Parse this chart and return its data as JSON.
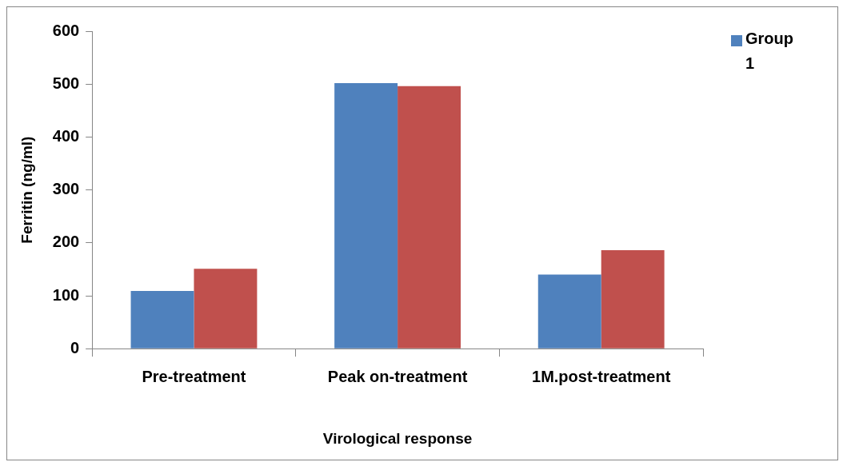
{
  "chart_data": {
    "type": "bar",
    "xlabel": "Virological response",
    "ylabel": "Ferritin (ng/ml)",
    "categories": [
      "Pre-treatment",
      "Peak on-treatment",
      "1M.post-treatment"
    ],
    "series": [
      {
        "name": "Group 1",
        "color": "#4f81bd",
        "values": [
          109,
          502,
          140
        ]
      },
      {
        "color": "#c0504d",
        "values": [
          151,
          496,
          186
        ]
      }
    ],
    "ylim": [
      0,
      600
    ],
    "yticks": [
      0,
      100,
      200,
      300,
      400,
      500,
      600
    ],
    "grid": false,
    "legend": "top right"
  }
}
